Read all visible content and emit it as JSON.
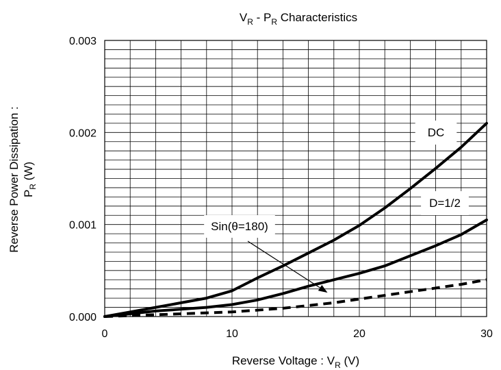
{
  "chart_data": {
    "type": "line",
    "title": {
      "main": "V",
      "sub1": "R",
      "mid": " - P",
      "sub2": "R",
      "tail": "  Characteristics"
    },
    "xlabel": {
      "main": "Reverse Voltage : V",
      "sub": "R",
      "tail": " (V)"
    },
    "ylabel": {
      "line1": "Reverse Power Dissipation :",
      "line2_main": "P",
      "line2_sub": "R",
      "line2_tail": " (W)"
    },
    "xlim": [
      0,
      30
    ],
    "ylim": [
      0,
      0.003
    ],
    "x_ticks": [
      0,
      10,
      20,
      30
    ],
    "x_tick_labels": [
      "0",
      "10",
      "20",
      "30"
    ],
    "y_ticks": [
      0,
      0.001,
      0.002,
      0.003
    ],
    "y_tick_labels": [
      "0.000",
      "0.001",
      "0.002",
      "0.003"
    ],
    "grid": true,
    "grid_x_step": 2,
    "grid_y_step": 0.0001,
    "series": [
      {
        "name": "DC",
        "style": "solid",
        "x": [
          0,
          2,
          4,
          6,
          8,
          10,
          12,
          14,
          16,
          18,
          20,
          22,
          24,
          26,
          28,
          30
        ],
        "y": [
          0,
          5e-05,
          0.0001,
          0.00015,
          0.0002,
          0.00028,
          0.00042,
          0.00055,
          0.00069,
          0.00083,
          0.00099,
          0.00118,
          0.00139,
          0.00161,
          0.00184,
          0.0021
        ]
      },
      {
        "name": "D=1/2",
        "style": "solid",
        "x": [
          0,
          2,
          4,
          6,
          8,
          10,
          12,
          14,
          16,
          18,
          20,
          22,
          24,
          26,
          28,
          30
        ],
        "y": [
          0,
          3e-05,
          6e-05,
          8e-05,
          0.0001,
          0.00013,
          0.00018,
          0.00025,
          0.00033,
          0.0004,
          0.00047,
          0.00055,
          0.00066,
          0.00077,
          0.00089,
          0.00105
        ]
      },
      {
        "name": "Sin(θ=180)",
        "style": "dashed",
        "x": [
          0,
          2,
          4,
          6,
          8,
          10,
          12,
          14,
          16,
          18,
          20,
          22,
          24,
          26,
          28,
          30
        ],
        "y": [
          0,
          1e-05,
          2e-05,
          3e-05,
          4e-05,
          5e-05,
          7e-05,
          9e-05,
          0.00012,
          0.00015,
          0.00019,
          0.00023,
          0.00027,
          0.00031,
          0.00035,
          0.0004
        ]
      }
    ],
    "annotations": {
      "dc_label": "DC",
      "half_label": "D=1/2",
      "sin_label": "Sin(θ=180)",
      "sin_arrow_target": [
        17.5,
        0.00026
      ]
    }
  }
}
